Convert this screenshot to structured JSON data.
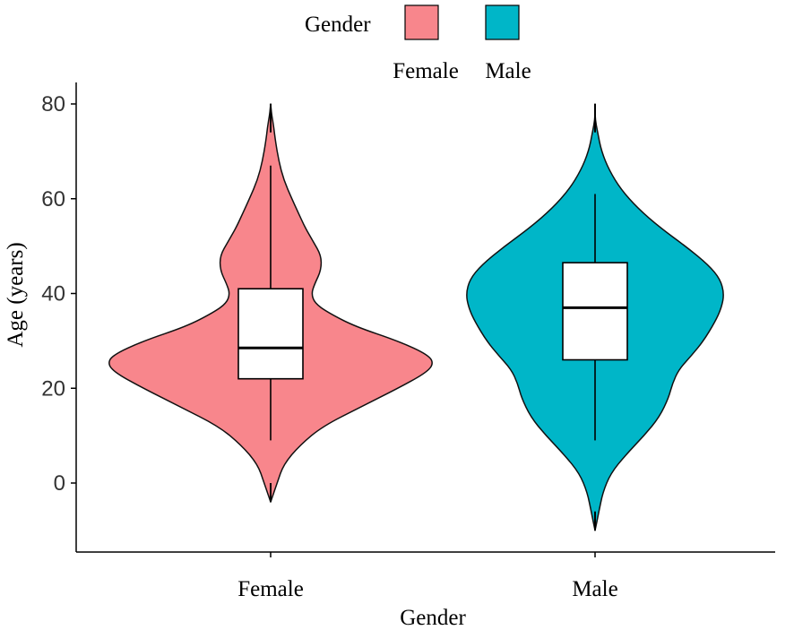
{
  "chart_data": {
    "type": "violin",
    "title": "",
    "xlabel": "Gender",
    "ylabel": "Age (years)",
    "ylim": [
      -12,
      85
    ],
    "yticks": [
      0,
      20,
      40,
      60,
      80
    ],
    "legend": {
      "title": "Gender",
      "position": "top",
      "entries": [
        {
          "label": "Female",
          "color": "#F8868C"
        },
        {
          "label": "Male",
          "color": "#00B6C8"
        }
      ]
    },
    "categories": [
      "Female",
      "Male"
    ],
    "series": [
      {
        "name": "Female",
        "color": "#F8868C",
        "box": {
          "whisker_low": 9,
          "q1": 22,
          "median": 28.5,
          "q3": 41,
          "whisker_high": 67
        },
        "range": [
          -4,
          80
        ],
        "density": [
          [
            -4,
            0.0
          ],
          [
            0,
            0.04
          ],
          [
            4,
            0.08
          ],
          [
            8,
            0.18
          ],
          [
            12,
            0.32
          ],
          [
            16,
            0.55
          ],
          [
            20,
            0.78
          ],
          [
            23,
            0.94
          ],
          [
            25,
            1.0
          ],
          [
            27,
            0.97
          ],
          [
            30,
            0.78
          ],
          [
            33,
            0.52
          ],
          [
            36,
            0.35
          ],
          [
            38,
            0.27
          ],
          [
            40,
            0.25
          ],
          [
            42,
            0.27
          ],
          [
            45,
            0.31
          ],
          [
            48,
            0.31
          ],
          [
            51,
            0.26
          ],
          [
            54,
            0.21
          ],
          [
            57,
            0.17
          ],
          [
            60,
            0.13
          ],
          [
            64,
            0.08
          ],
          [
            68,
            0.05
          ],
          [
            72,
            0.03
          ],
          [
            75,
            0.02
          ],
          [
            78,
            0.005
          ],
          [
            80,
            0.0
          ]
        ]
      },
      {
        "name": "Male",
        "color": "#00B6C8",
        "box": {
          "whisker_low": 9,
          "q1": 26,
          "median": 37,
          "q3": 46.5,
          "whisker_high": 61
        },
        "range": [
          -10,
          80
        ],
        "density": [
          [
            -10,
            0.0
          ],
          [
            -6,
            0.03
          ],
          [
            -2,
            0.06
          ],
          [
            2,
            0.12
          ],
          [
            6,
            0.24
          ],
          [
            10,
            0.38
          ],
          [
            14,
            0.5
          ],
          [
            18,
            0.57
          ],
          [
            21,
            0.6
          ],
          [
            24,
            0.65
          ],
          [
            27,
            0.75
          ],
          [
            30,
            0.84
          ],
          [
            34,
            0.93
          ],
          [
            37,
            0.98
          ],
          [
            40,
            1.0
          ],
          [
            43,
            0.97
          ],
          [
            46,
            0.88
          ],
          [
            50,
            0.7
          ],
          [
            54,
            0.5
          ],
          [
            58,
            0.33
          ],
          [
            62,
            0.2
          ],
          [
            66,
            0.11
          ],
          [
            70,
            0.05
          ],
          [
            74,
            0.02
          ],
          [
            77,
            0.0
          ],
          [
            80,
            0.0
          ]
        ]
      }
    ]
  }
}
